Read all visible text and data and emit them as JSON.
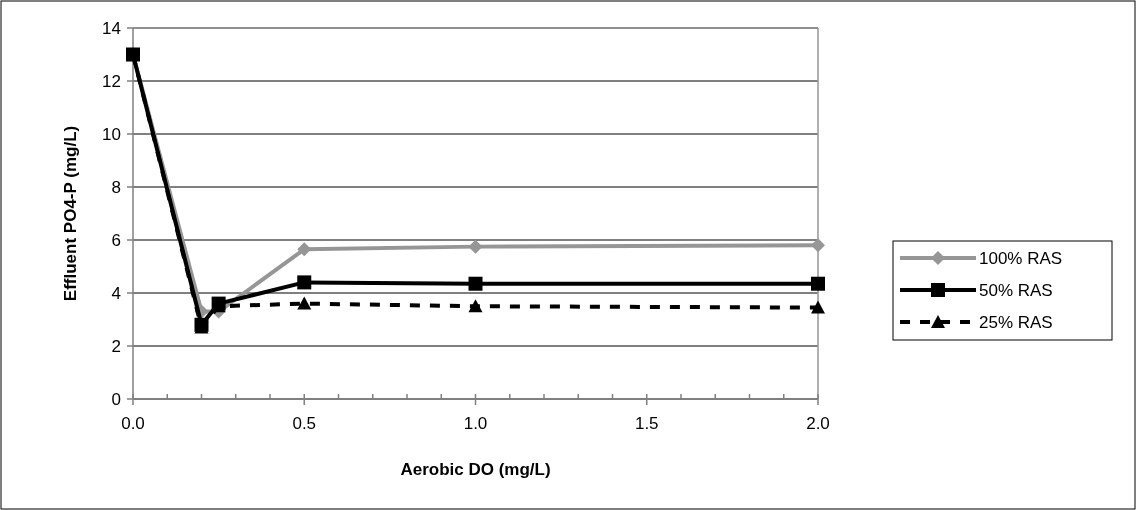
{
  "chart_data": {
    "type": "line",
    "xlabel": "Aerobic DO (mg/L)",
    "ylabel": "Effluent PO4-P (mg/L)",
    "x": [
      0,
      0.2,
      0.25,
      0.5,
      1.0,
      2.0
    ],
    "xlim": [
      0,
      2
    ],
    "xticks": [
      {
        "value": 0,
        "label": "0.0"
      },
      0.5,
      {
        "value": 1,
        "label": "1.0"
      },
      1.5,
      {
        "value": 2,
        "label": "2.0"
      }
    ],
    "ylim": [
      0,
      14
    ],
    "yticks": [
      0,
      2,
      4,
      6,
      8,
      10,
      12,
      14
    ],
    "grid": "y",
    "legend": "right",
    "series": [
      {
        "name": "100% RAS",
        "color": "#969696",
        "marker": "diamond",
        "line_style": "solid",
        "values": [
          13,
          3.3,
          3.3,
          5.65,
          5.75,
          5.8
        ]
      },
      {
        "name": "50% RAS",
        "color": "#000000",
        "marker": "square",
        "line_style": "solid",
        "values": [
          13,
          2.8,
          3.6,
          4.4,
          4.35,
          4.35
        ]
      },
      {
        "name": "25% RAS",
        "color": "#000000",
        "marker": "triangle",
        "line_style": "dashed",
        "values": [
          13,
          2.7,
          3.5,
          3.6,
          3.5,
          3.45
        ]
      }
    ]
  }
}
